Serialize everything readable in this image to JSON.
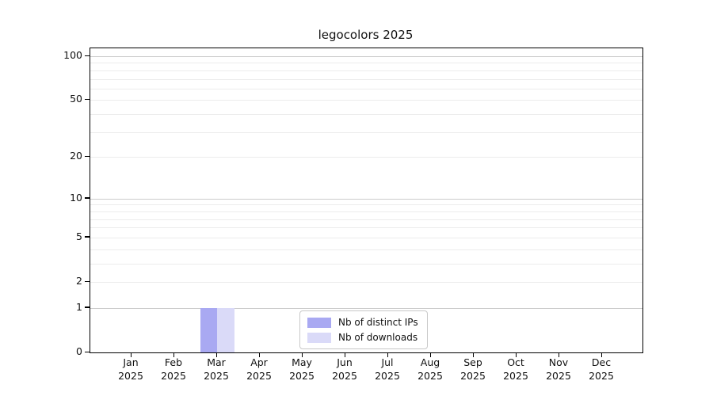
{
  "figure": {
    "background": "#ffffff"
  },
  "chart_data": {
    "type": "bar",
    "title": "legocolors 2025",
    "xlabel": "",
    "ylabel": "",
    "y_scale": "log1p",
    "y_max": 100,
    "ylim": [
      0,
      100
    ],
    "grid": "horizontal",
    "legend_position": "bottom-center-inside",
    "y_ticks": [
      0,
      1,
      2,
      5,
      10,
      20,
      50,
      100
    ],
    "y_grid_major": [
      1,
      10,
      100
    ],
    "y_grid_minor": [
      2,
      3,
      4,
      5,
      6,
      7,
      8,
      9,
      20,
      30,
      40,
      50,
      60,
      70,
      80,
      90
    ],
    "categories": [
      {
        "top": "Jan",
        "bottom": "2025"
      },
      {
        "top": "Feb",
        "bottom": "2025"
      },
      {
        "top": "Mar",
        "bottom": "2025"
      },
      {
        "top": "Apr",
        "bottom": "2025"
      },
      {
        "top": "May",
        "bottom": "2025"
      },
      {
        "top": "Jun",
        "bottom": "2025"
      },
      {
        "top": "Jul",
        "bottom": "2025"
      },
      {
        "top": "Aug",
        "bottom": "2025"
      },
      {
        "top": "Sep",
        "bottom": "2025"
      },
      {
        "top": "Oct",
        "bottom": "2025"
      },
      {
        "top": "Nov",
        "bottom": "2025"
      },
      {
        "top": "Dec",
        "bottom": "2025"
      }
    ],
    "series": [
      {
        "name": "Nb of distinct IPs",
        "color": "#a9a9f2",
        "values": [
          0,
          0,
          1,
          0,
          0,
          0,
          0,
          0,
          0,
          0,
          0,
          0
        ]
      },
      {
        "name": "Nb of downloads",
        "color": "#dadaf8",
        "values": [
          0,
          0,
          1,
          0,
          0,
          0,
          0,
          0,
          0,
          0,
          0,
          0
        ]
      }
    ],
    "colors": {
      "spine": "#000000",
      "grid_major": "#cccccc",
      "grid_minor": "#ececec",
      "text": "#111111"
    }
  }
}
